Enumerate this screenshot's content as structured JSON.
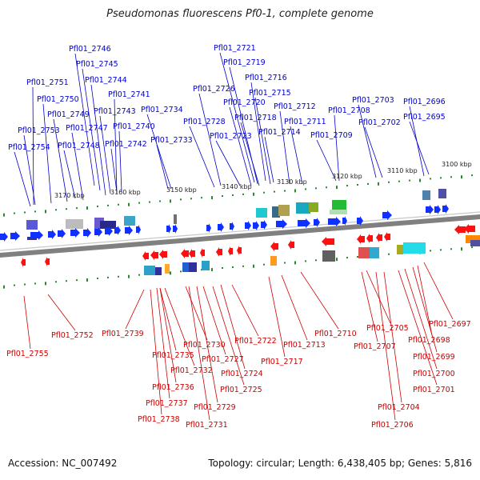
{
  "title": "Pseudomonas fluorescens Pf0-1, complete genome",
  "accession_text": "Accession: NC_007492",
  "summary_text": "Topology: circular; Length: 6,438,405 bp; Genes: 5,816",
  "colors": {
    "forward_label": "#0000cc",
    "reverse_label": "#cc0000",
    "forward_gene": "#1030ff",
    "reverse_gene": "#ff1010",
    "backbone": "#808080",
    "tick": "#2a8a2a"
  },
  "scale_ticks": [
    "3170 kbp",
    "3160 kbp",
    "3150 kbp",
    "3140 kbp",
    "3130 kbp",
    "3120 kbp",
    "3110 kbp",
    "3100 kbp"
  ],
  "forward_labels": [
    "Pfl01_2746",
    "Pfl01_2745",
    "Pfl01_2751",
    "Pfl01_2744",
    "Pfl01_2750",
    "Pfl01_2741",
    "Pfl01_2749",
    "Pfl01_2743",
    "Pfl01_2753",
    "Pfl01_2747",
    "Pfl01_2740",
    "Pfl01_2754",
    "Pfl01_2748",
    "Pfl01_2742",
    "Pfl01_2734",
    "Pfl01_2733",
    "Pfl01_2721",
    "Pfl01_2719",
    "Pfl01_2716",
    "Pfl01_2726",
    "Pfl01_2715",
    "Pfl01_2720",
    "Pfl01_2712",
    "Pfl01_2718",
    "Pfl01_2728",
    "Pfl01_2711",
    "Pfl01_2723",
    "Pfl01_2714",
    "Pfl01_2708",
    "Pfl01_2709",
    "Pfl01_2703",
    "Pfl01_2702",
    "Pfl01_2696",
    "Pfl01_2695"
  ],
  "reverse_labels": [
    "Pfl01_2755",
    "Pfl01_2752",
    "Pfl01_2739",
    "Pfl01_2735",
    "Pfl01_2730",
    "Pfl01_2727",
    "Pfl01_2722",
    "Pfl01_2732",
    "Pfl01_2724",
    "Pfl01_2736",
    "Pfl01_2725",
    "Pfl01_2737",
    "Pfl01_2729",
    "Pfl01_2738",
    "Pfl01_2731",
    "Pfl01_2717",
    "Pfl01_2713",
    "Pfl01_2710",
    "Pfl01_2705",
    "Pfl01_2707",
    "Pfl01_2697",
    "Pfl01_2698",
    "Pfl01_2699",
    "Pfl01_2700",
    "Pfl01_2701",
    "Pfl01_2704",
    "Pfl01_2706"
  ]
}
